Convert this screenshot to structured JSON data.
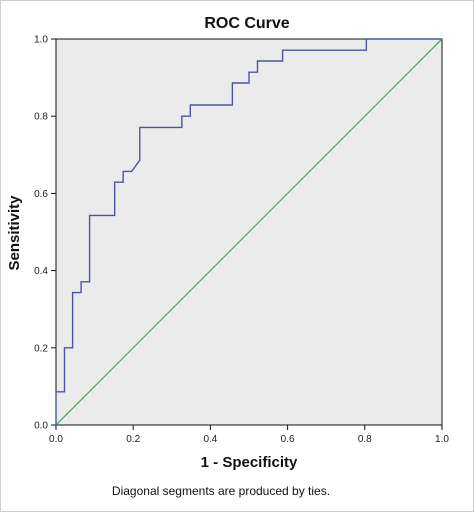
{
  "chart_data": {
    "type": "line",
    "title": "ROC Curve",
    "xlabel": "1 - Specificity",
    "ylabel": "Sensitivity",
    "xlim": [
      0.0,
      1.0
    ],
    "ylim": [
      0.0,
      1.0
    ],
    "x_ticks": [
      "0.0",
      "0.2",
      "0.4",
      "0.6",
      "0.8",
      "1.0"
    ],
    "y_ticks": [
      "0.0",
      "0.2",
      "0.4",
      "0.6",
      "0.8",
      "1.0"
    ],
    "grid": false,
    "legend": "none",
    "footnote": "Diagonal segments are produced by ties.",
    "colors": {
      "plot_background": "#ebebeb",
      "roc_line": "#4a55a2",
      "reference_line": "#4fae5e"
    },
    "series": [
      {
        "x": [
          0.0,
          0.0,
          0.022,
          0.022,
          0.043,
          0.043,
          0.065,
          0.065,
          0.087,
          0.087,
          0.152,
          0.152,
          0.174,
          0.174,
          0.196,
          0.217,
          0.217,
          0.326,
          0.326,
          0.348,
          0.348,
          0.457,
          0.457,
          0.5,
          0.5,
          0.522,
          0.522,
          0.587,
          0.587,
          0.804,
          0.804,
          1.0
        ],
        "y": [
          0.0,
          0.086,
          0.086,
          0.2,
          0.2,
          0.343,
          0.343,
          0.371,
          0.371,
          0.543,
          0.543,
          0.629,
          0.629,
          0.657,
          0.657,
          0.686,
          0.771,
          0.771,
          0.8,
          0.8,
          0.829,
          0.829,
          0.886,
          0.886,
          0.914,
          0.914,
          0.943,
          0.943,
          0.971,
          0.971,
          1.0,
          1.0
        ]
      },
      {
        "x": [
          0.0,
          1.0
        ],
        "y": [
          0.0,
          1.0
        ]
      }
    ]
  }
}
